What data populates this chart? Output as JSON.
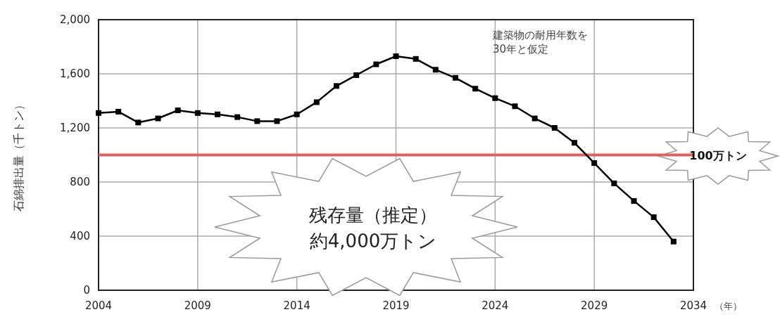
{
  "chart_data": {
    "type": "line",
    "xlabel": "（年）",
    "ylabel": "石綿排出量（千トン）",
    "x": [
      2004,
      2005,
      2006,
      2007,
      2008,
      2009,
      2010,
      2011,
      2012,
      2013,
      2014,
      2015,
      2016,
      2017,
      2018,
      2019,
      2020,
      2021,
      2022,
      2023,
      2024,
      2025,
      2026,
      2027,
      2028,
      2029,
      2030,
      2031,
      2032,
      2033
    ],
    "series": [
      {
        "color": "#000000",
        "values": [
          1310,
          1320,
          1240,
          1270,
          1330,
          1310,
          1300,
          1280,
          1250,
          1250,
          1300,
          1390,
          1510,
          1590,
          1670,
          1730,
          1710,
          1630,
          1570,
          1490,
          1420,
          1360,
          1270,
          1200,
          1090,
          940,
          790,
          660,
          540,
          360
        ]
      }
    ],
    "xlim": [
      2004,
      2034
    ],
    "xticks": [
      2004,
      2009,
      2014,
      2019,
      2024,
      2029,
      2034
    ],
    "ylim": [
      0,
      2000
    ],
    "yticks": [
      0,
      400,
      800,
      {
        "value": 1200,
        "label": "1,200"
      },
      {
        "value": 1600,
        "label": "1,600"
      },
      {
        "value": 2000,
        "label": "2,000"
      }
    ],
    "grid": true,
    "marker": "square",
    "line_style": "solid",
    "ref_lines": [
      {
        "axis": "y",
        "value": 1000,
        "label": "100万トン",
        "color": "#e06060"
      }
    ],
    "annotations": [
      "建築物の耐用年数を",
      "30年と仮定",
      "残存量（推定）",
      "約4,000万トン"
    ]
  }
}
